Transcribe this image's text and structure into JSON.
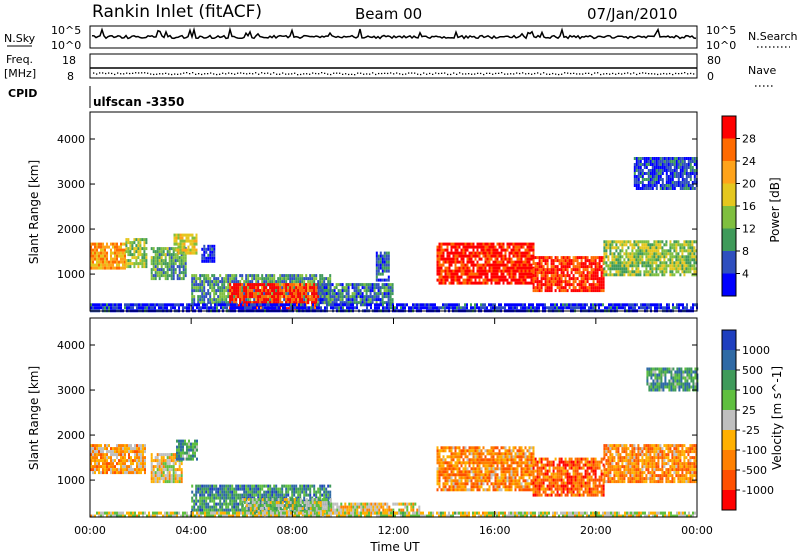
{
  "header": {
    "station": "Rankin Inlet (fitACF)",
    "beam": "Beam 00",
    "date": "07/Jan/2010"
  },
  "strip": {
    "nsky_label": "N.Sky",
    "nsky_hi": "10^5",
    "nsky_lo": "10^0",
    "nsearch_label": "N.Search",
    "nsearch_hi": "10^5",
    "nsearch_lo": "10^0",
    "freq_label": "Freq.",
    "freq_unit": "[MHz]",
    "freq_hi": "18",
    "freq_lo": "8",
    "nave_label": "Nave",
    "nave_hi": "80",
    "nave_lo": "0",
    "cpid_label": "CPID",
    "cpid_value": "ulfscan -3350"
  },
  "chart_data": [
    {
      "type": "heatmap",
      "quantity": "Power",
      "ylabel": "Slant Range [km]",
      "colorbar_label": "Power [dB]",
      "yticks": [
        1000,
        2000,
        3000,
        4000
      ],
      "ylim": [
        180,
        4600
      ],
      "xlim_hours": [
        0,
        24
      ],
      "colorbar_ticks": [
        "28",
        "24",
        "20",
        "16",
        "12",
        "8",
        "4"
      ],
      "colorbar_colors": [
        "#ff0000",
        "#ff6a00",
        "#ffa31a",
        "#e5c71f",
        "#7fbf3f",
        "#3f9a5a",
        "#2f4fbf",
        "#0000ff"
      ],
      "regions": [
        {
          "t": [
            0.0,
            1.4
          ],
          "r": [
            1150,
            1700
          ],
          "level": 0.7
        },
        {
          "t": [
            1.4,
            2.2
          ],
          "r": [
            1200,
            1800
          ],
          "level": 0.45
        },
        {
          "t": [
            2.4,
            3.8
          ],
          "r": [
            900,
            1600
          ],
          "level": 0.35
        },
        {
          "t": [
            3.3,
            4.2
          ],
          "r": [
            1450,
            1900
          ],
          "level": 0.55
        },
        {
          "t": [
            4.4,
            4.9
          ],
          "r": [
            1300,
            1650
          ],
          "level": 0.1
        },
        {
          "t": [
            4.0,
            9.5
          ],
          "r": [
            400,
            1000
          ],
          "level": 0.3
        },
        {
          "t": [
            5.5,
            9.0
          ],
          "r": [
            250,
            800
          ],
          "level": 0.9
        },
        {
          "t": [
            9.0,
            12.0
          ],
          "r": [
            400,
            800
          ],
          "level": 0.25
        },
        {
          "t": [
            11.3,
            11.8
          ],
          "r": [
            900,
            1500
          ],
          "level": 0.2
        },
        {
          "t": [
            13.7,
            17.5
          ],
          "r": [
            800,
            1700
          ],
          "level": 0.95
        },
        {
          "t": [
            17.5,
            20.3
          ],
          "r": [
            650,
            1400
          ],
          "level": 0.92
        },
        {
          "t": [
            20.3,
            24.0
          ],
          "r": [
            1000,
            1750
          ],
          "level": 0.45
        },
        {
          "t": [
            21.5,
            24.0
          ],
          "r": [
            2900,
            3600
          ],
          "level": 0.15
        },
        {
          "t": [
            0.0,
            24.0
          ],
          "r": [
            180,
            350
          ],
          "level": 0.1
        }
      ]
    },
    {
      "type": "heatmap",
      "quantity": "Velocity",
      "ylabel": "Slant Range [km]",
      "colorbar_label": "Velocity [m s^-1]",
      "yticks": [
        1000,
        2000,
        3000,
        4000
      ],
      "ylim": [
        180,
        4600
      ],
      "xlim_hours": [
        0,
        24
      ],
      "xticks": [
        "00:00",
        "04:00",
        "08:00",
        "12:00",
        "16:00",
        "20:00",
        "00:00"
      ],
      "xlabel": "Time UT",
      "colorbar_ticks": [
        "1000",
        "500",
        "100",
        "25",
        "-25",
        "-100",
        "-500",
        "-1000"
      ],
      "colorbar_colors": [
        "#1f3fbf",
        "#2f6aa5",
        "#3f9a5a",
        "#5fbf3f",
        "#bfbfbf",
        "#ffb000",
        "#ff8000",
        "#ff5000",
        "#ff0000"
      ],
      "regions": [
        {
          "t": [
            0.0,
            2.2
          ],
          "r": [
            1150,
            1800
          ],
          "level": 0.65
        },
        {
          "t": [
            2.4,
            3.6
          ],
          "r": [
            1000,
            1600
          ],
          "level": 0.55
        },
        {
          "t": [
            3.4,
            4.2
          ],
          "r": [
            1500,
            1900
          ],
          "level": 0.3
        },
        {
          "t": [
            4.0,
            9.5
          ],
          "r": [
            350,
            900
          ],
          "level": 0.25
        },
        {
          "t": [
            6.0,
            9.5
          ],
          "r": [
            250,
            600
          ],
          "level": 0.45
        },
        {
          "t": [
            9.5,
            13.0
          ],
          "r": [
            250,
            500
          ],
          "level": 0.55
        },
        {
          "t": [
            13.7,
            17.5
          ],
          "r": [
            800,
            1750
          ],
          "level": 0.7
        },
        {
          "t": [
            17.5,
            20.3
          ],
          "r": [
            650,
            1500
          ],
          "level": 0.8
        },
        {
          "t": [
            20.3,
            24.0
          ],
          "r": [
            1000,
            1800
          ],
          "level": 0.7
        },
        {
          "t": [
            22.0,
            24.0
          ],
          "r": [
            3000,
            3500
          ],
          "level": 0.3
        },
        {
          "t": [
            0.0,
            24.0
          ],
          "r": [
            180,
            300
          ],
          "level": 0.5
        }
      ]
    }
  ]
}
